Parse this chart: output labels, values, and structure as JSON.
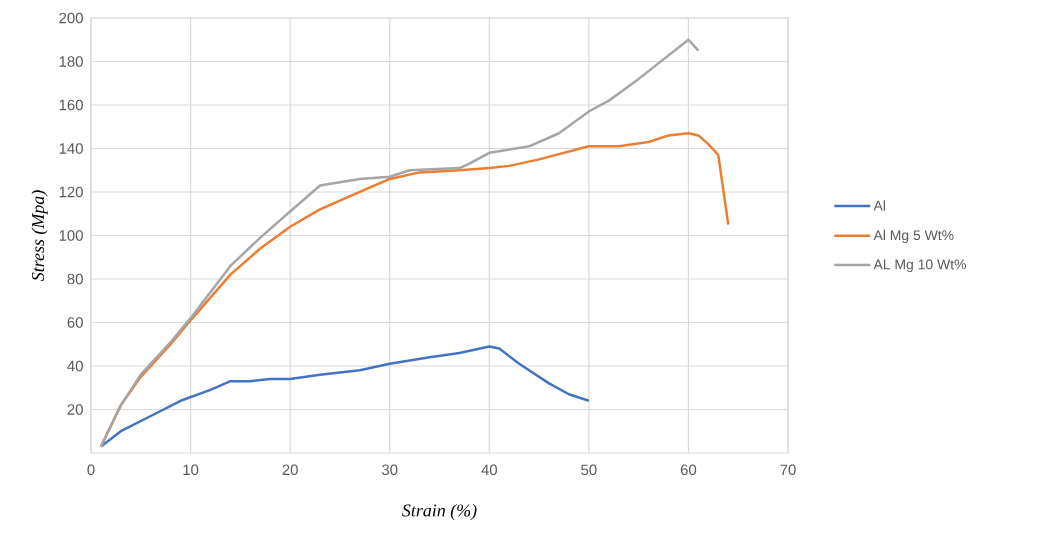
{
  "chart_data": {
    "type": "line",
    "xlabel": "Strain (%)",
    "ylabel": "Stress (Mpa)",
    "xlim": [
      0,
      70
    ],
    "ylim": [
      0,
      200
    ],
    "xticks": [
      0,
      10,
      20,
      30,
      40,
      50,
      60,
      70
    ],
    "yticks": [
      20,
      40,
      60,
      80,
      100,
      120,
      140,
      160,
      180,
      200
    ],
    "grid": true,
    "legend": "right",
    "marker": "none",
    "line_style": "solid",
    "series": [
      {
        "name": "Al",
        "color": "#4472c4",
        "x": [
          1,
          3,
          6,
          9,
          12,
          14,
          16,
          18,
          20,
          23,
          27,
          30,
          34,
          37,
          40,
          41,
          43,
          46,
          48,
          50
        ],
        "values": [
          3,
          10,
          17,
          24,
          29,
          33,
          33,
          34,
          34,
          36,
          38,
          41,
          44,
          46,
          49,
          48,
          41,
          32,
          27,
          24
        ]
      },
      {
        "name": "Al Mg 5 Wt%",
        "color": "#ed7d31",
        "x": [
          1,
          3,
          5,
          8,
          10,
          14,
          17,
          20,
          23,
          27,
          30,
          33,
          37,
          40,
          42,
          45,
          50,
          53,
          56,
          58,
          60,
          61,
          62,
          63,
          64
        ],
        "values": [
          3,
          22,
          35,
          50,
          61,
          82,
          94,
          104,
          112,
          120,
          126,
          129,
          130,
          131,
          132,
          135,
          141,
          141,
          143,
          146,
          147,
          146,
          142,
          137,
          105
        ]
      },
      {
        "name": "AL Mg 10 Wt%",
        "color": "#a5a5a5",
        "x": [
          1,
          3,
          5,
          8,
          10,
          14,
          17,
          20,
          23,
          27,
          30,
          32,
          37,
          38,
          40,
          44,
          47,
          50,
          52,
          55,
          60,
          61
        ],
        "values": [
          3,
          22,
          36,
          51,
          62,
          86,
          99,
          111,
          123,
          126,
          127,
          130,
          131,
          133,
          138,
          141,
          147,
          157,
          162,
          172,
          190,
          185
        ]
      }
    ]
  }
}
